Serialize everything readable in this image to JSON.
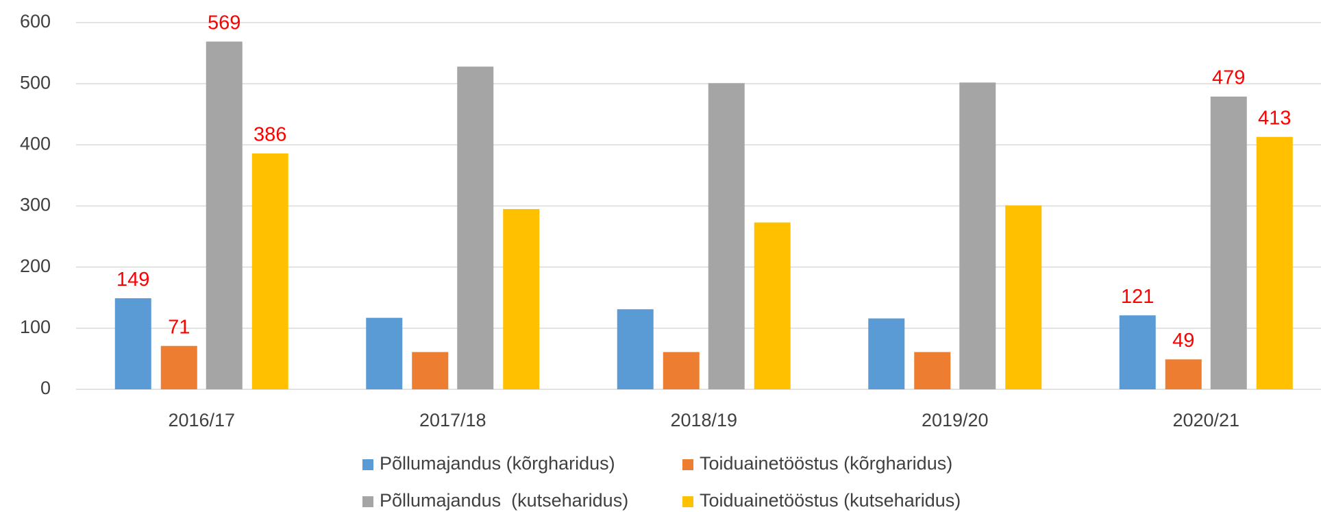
{
  "chart_data": {
    "type": "bar",
    "categories": [
      "2016/17",
      "2017/18",
      "2018/19",
      "2019/20",
      "2020/21"
    ],
    "series": [
      {
        "name": "Põllumajandus (kõrgharidus)",
        "color": "#5b9bd5",
        "values": [
          149,
          117,
          131,
          116,
          121
        ],
        "value_labels": [
          "149",
          null,
          null,
          null,
          "121"
        ]
      },
      {
        "name": "Toiduainetööstus (kõrgharidus)",
        "color": "#ed7d31",
        "values": [
          71,
          61,
          61,
          61,
          49
        ],
        "value_labels": [
          "71",
          null,
          null,
          null,
          "49"
        ]
      },
      {
        "name": "Põllumajandus  (kutseharidus)",
        "color": "#a5a5a5",
        "values": [
          569,
          528,
          501,
          502,
          479
        ],
        "value_labels": [
          "569",
          null,
          null,
          null,
          "479"
        ]
      },
      {
        "name": "Toiduainetööstus (kutseharidus)",
        "color": "#ffc000",
        "values": [
          386,
          295,
          273,
          301,
          413
        ],
        "value_labels": [
          "386",
          null,
          null,
          null,
          "413"
        ]
      }
    ],
    "ylim": [
      0,
      600
    ],
    "yticks": [
      0,
      100,
      200,
      300,
      400,
      500,
      600
    ],
    "grid": true,
    "legend": "bottom"
  }
}
